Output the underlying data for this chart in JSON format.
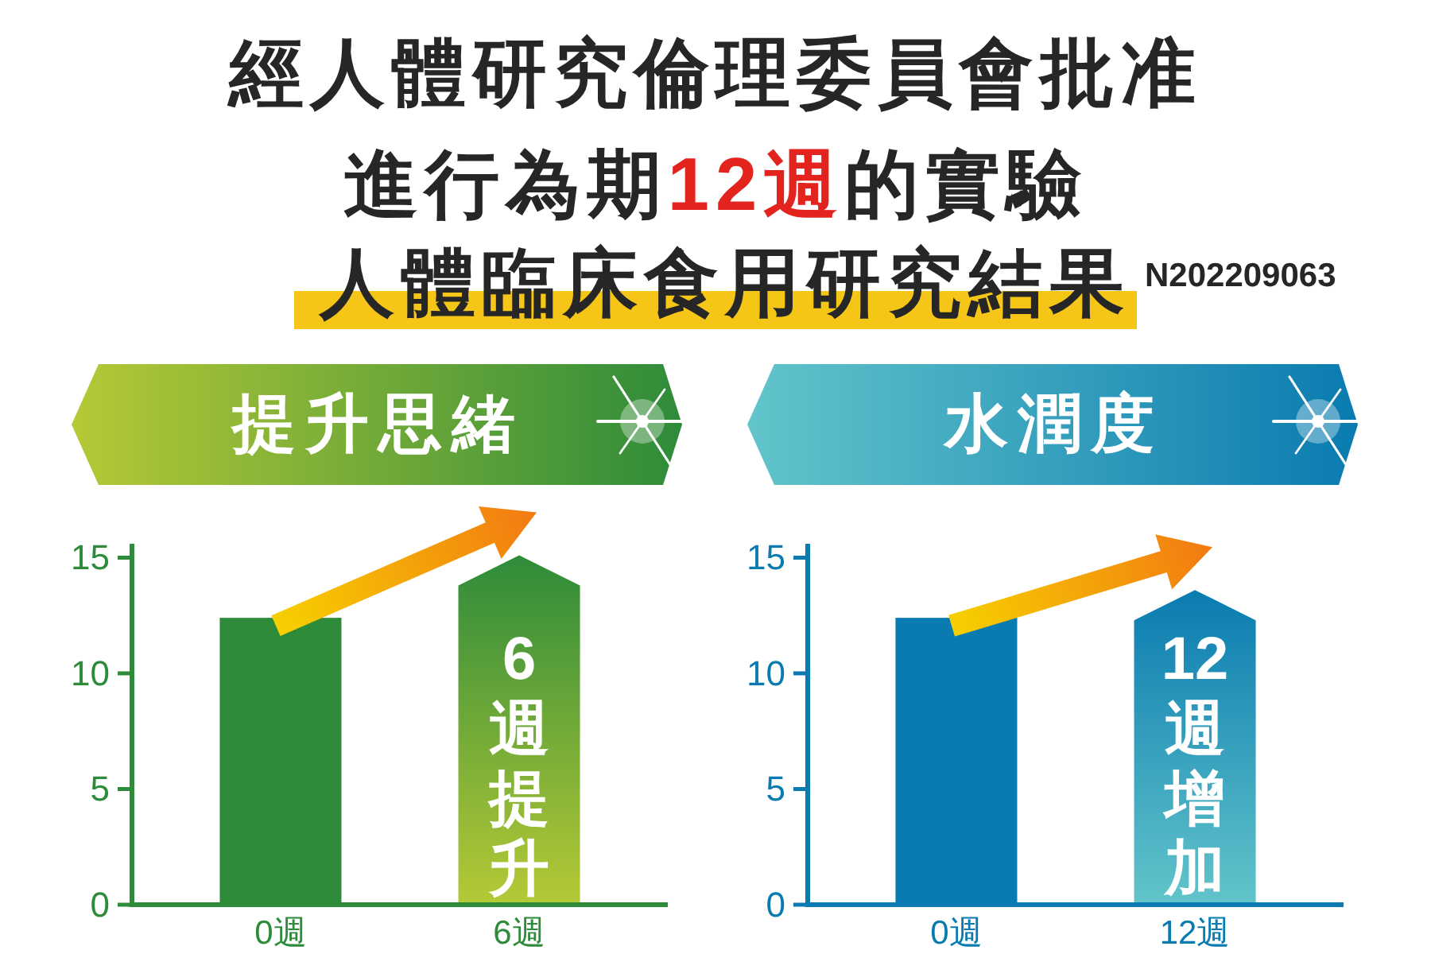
{
  "chart_data": [
    {
      "type": "other",
      "title": "經人體研究倫理委員會批准進行為期12週的實驗",
      "subtitle": "人體臨床食用研究結果",
      "annotations": [
        "N202209063"
      ]
    },
    {
      "type": "bar",
      "title": "提升思緒",
      "categories": [
        "0週",
        "6週"
      ],
      "values": [
        12.4,
        15.1
      ],
      "colors": [
        "#2e8b3a",
        "#72aa38"
      ],
      "ylim": [
        0,
        15.6
      ],
      "yticks": [
        0,
        5,
        10,
        15
      ],
      "annotations": [
        "6週提升"
      ]
    },
    {
      "type": "bar",
      "title": "水潤度",
      "categories": [
        "0週",
        "12週"
      ],
      "values": [
        12.4,
        13.6
      ],
      "colors": [
        "#0a7bb0",
        "#36a0bd"
      ],
      "ylim": [
        0,
        15.6
      ],
      "yticks": [
        0,
        5,
        10,
        15
      ],
      "annotations": [
        "12週增加"
      ]
    }
  ]
}
